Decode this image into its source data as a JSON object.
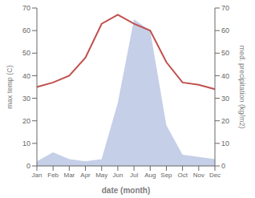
{
  "chart_data": {
    "type": "line",
    "xlabel": "date (month)",
    "ylabel": "max temp (C)",
    "y2label": "med. precipitation (kg/m2)",
    "categories": [
      "Jan",
      "Feb",
      "Mar",
      "Apr",
      "May",
      "Jun",
      "Jul",
      "Aug",
      "Sep",
      "Oct",
      "Nov",
      "Dec"
    ],
    "series": [
      {
        "type": "area",
        "axis": "y2",
        "color": "#c5cfe8",
        "values": [
          2,
          6,
          3,
          2,
          3,
          28,
          65,
          60,
          18,
          5,
          4,
          3
        ]
      },
      {
        "type": "line",
        "color": "#c0504d",
        "values": [
          35,
          37,
          40,
          48,
          63,
          67,
          63,
          60,
          46,
          37,
          36,
          34
        ]
      }
    ],
    "ylim": [
      0,
      70
    ],
    "yticks": [
      0,
      10,
      20,
      30,
      40,
      50,
      60,
      70
    ],
    "y2lim": [
      0,
      70
    ],
    "y2ticks": [
      0,
      10,
      20,
      30,
      40,
      50,
      60,
      70
    ],
    "grid": false
  }
}
